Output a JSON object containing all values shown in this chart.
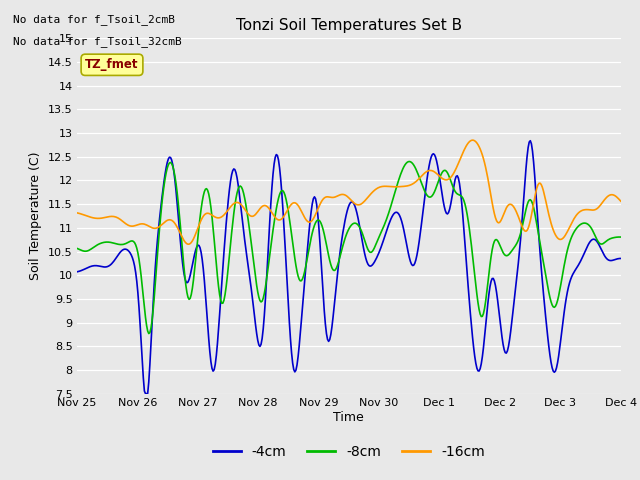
{
  "title": "Tonzi Soil Temperatures Set B",
  "xlabel": "Time",
  "ylabel": "Soil Temperature (C)",
  "ylim": [
    7.5,
    15.0
  ],
  "yticks": [
    7.5,
    8.0,
    8.5,
    9.0,
    9.5,
    10.0,
    10.5,
    11.0,
    11.5,
    12.0,
    12.5,
    13.0,
    13.5,
    14.0,
    14.5,
    15.0
  ],
  "bg_color": "#e8e8e8",
  "line_colors": {
    "4cm": "#0000cc",
    "8cm": "#00bb00",
    "16cm": "#ff9900"
  },
  "legend_labels": [
    "-4cm",
    "-8cm",
    "-16cm"
  ],
  "no_data_text": [
    "No data for f_Tsoil_2cmB",
    "No data for f_Tsoil_32cmB"
  ],
  "tz_fmet_label": "TZ_fmet",
  "x_tick_labels": [
    "Nov 25",
    "Nov 26",
    "Nov 27",
    "Nov 28",
    "Nov 29",
    "Nov 30",
    "Dec 1",
    "Dec 2",
    "Dec 3",
    "Dec 4"
  ]
}
